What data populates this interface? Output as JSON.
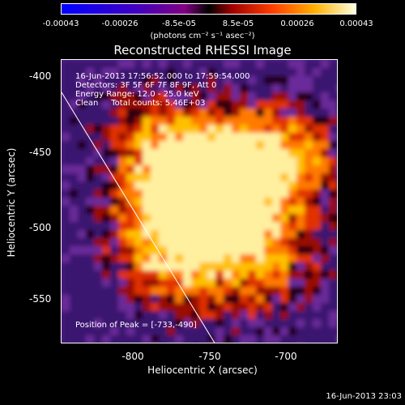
{
  "colorbar": {
    "tick_labels": [
      "-0.00043",
      "-0.00026",
      "-8.5e-05",
      "8.5e-05",
      "0.00026",
      "0.00043"
    ],
    "units": "(photons cm⁻² s⁻¹ asec⁻²)"
  },
  "title": "Reconstructed RHESSI Image",
  "info": {
    "time_range": "16-Jun-2013 17:56:52.000 to 17:59:54.000",
    "detectors": "Detectors: 3F 5F 6F 7F 8F 9F, Att 0",
    "energy": "Energy Range: 12.0 - 25.0 keV",
    "method": "Clean     Total counts: 5.46E+03"
  },
  "peak": "Position of Peak = [-733,-490]",
  "axes": {
    "xlabel": "Heliocentric X (arcsec)",
    "ylabel": "Heliocentric Y (arcsec)",
    "x_ticks": [
      "-800",
      "-750",
      "-700"
    ],
    "y_ticks": [
      "-400",
      "-450",
      "-500",
      "-550"
    ]
  },
  "timestamp": "16-Jun-2013 23:03"
}
